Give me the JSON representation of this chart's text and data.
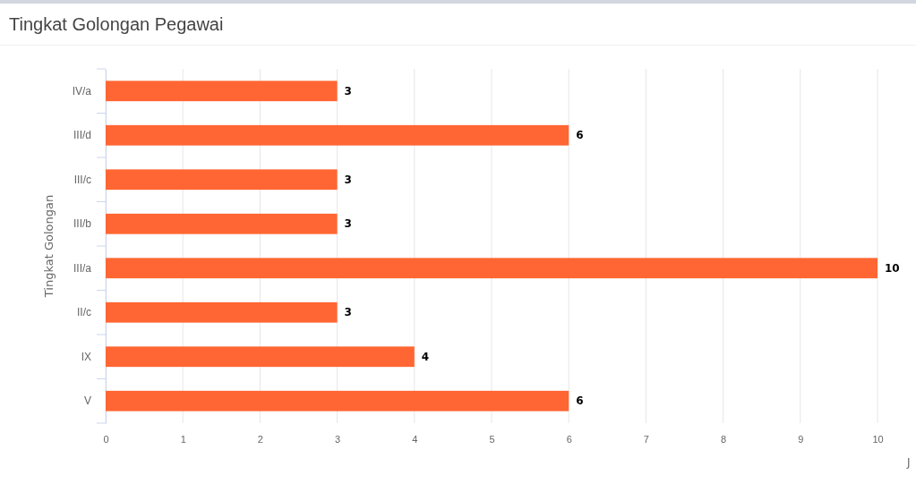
{
  "chart_data": {
    "type": "bar",
    "orientation": "horizontal",
    "title": "Tingkat Golongan Pegawai",
    "ylabel": "Tingkat Golongan",
    "xlabel": "J",
    "categories": [
      "IV/a",
      "III/d",
      "III/c",
      "III/b",
      "III/a",
      "II/c",
      "IX",
      "V"
    ],
    "values": [
      3,
      6,
      3,
      3,
      10,
      3,
      4,
      6
    ],
    "color": "#ff6633",
    "xlim": [
      0,
      10
    ],
    "xticks": [
      0,
      1,
      2,
      3,
      4,
      5,
      6,
      7,
      8,
      9,
      10
    ],
    "grid": "x",
    "data_labels": true
  }
}
